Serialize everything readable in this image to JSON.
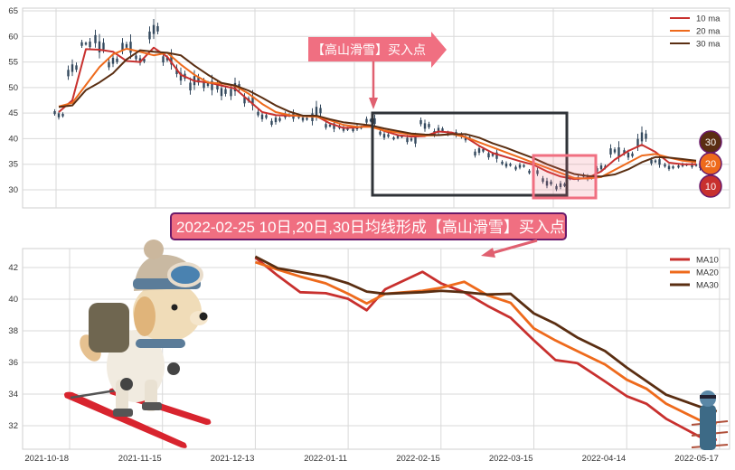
{
  "colors": {
    "ma10": "#c8302e",
    "ma20": "#ee6a1c",
    "ma30": "#5a2e12",
    "candle": "#34495e",
    "annotation": "#f06f81",
    "annotation_border": "#6a1a6a",
    "box": "#2f3338",
    "grid": "#d9d9d9"
  },
  "annotations": {
    "top_arrow_label": "【高山滑雪】买入点",
    "bottom_banner": "2022-02-25 10日,20日,30日均线形成【高山滑雪】买入点",
    "badges": [
      "30",
      "20",
      "10"
    ]
  },
  "illustrations": [
    "skiing-dog",
    "small-skier"
  ],
  "chart_data": [
    {
      "type": "line",
      "subtype": "candlestick-with-moving-averages",
      "title": "",
      "xlabel": "",
      "ylabel": "",
      "ylim": [
        26.5,
        65.5
      ],
      "yticks": [
        "30",
        "35",
        "40",
        "45",
        "50",
        "55",
        "60",
        "65"
      ],
      "grid": true,
      "legend": {
        "placement": "top-right",
        "entries": [
          "10 ma",
          "20 ma",
          "30 ma"
        ]
      },
      "candles": {
        "low": [
          43.5,
          51,
          57,
          55,
          53,
          55,
          54,
          58,
          53,
          50,
          48,
          48,
          47,
          47,
          45,
          43,
          42,
          43,
          43,
          42,
          41,
          41,
          41,
          42,
          39.5,
          39.5,
          38,
          41,
          40,
          40,
          39,
          36,
          35,
          34,
          33.5,
          32.5,
          30,
          29.5,
          31.5,
          31.5,
          33,
          35,
          35.5,
          37,
          34,
          33.5,
          34,
          33.5
        ],
        "high": [
          46,
          56,
          60,
          62,
          57,
          61,
          57,
          64,
          58,
          55,
          54,
          53,
          52,
          52.5,
          50,
          46,
          45,
          46,
          45,
          48,
          44,
          43,
          43,
          45,
          42,
          41,
          41.5,
          44.5,
          43,
          42,
          41.5,
          39,
          38.5,
          36,
          35.5,
          34.5,
          33,
          32,
          33,
          33.5,
          35.5,
          40,
          38.5,
          43,
          37,
          35.5,
          35.5,
          36
        ]
      },
      "series": [
        {
          "name": "10 ma",
          "values": [
            45.2,
            47.5,
            57.5,
            57.4,
            57.0,
            55.2,
            55.0,
            57.8,
            56.0,
            52.5,
            51.3,
            51.0,
            50.4,
            49.8,
            47.5,
            45.2,
            44.6,
            44.5,
            44.5,
            44.4,
            43.0,
            42.1,
            42.2,
            42.6,
            41.5,
            40.7,
            40.4,
            40.5,
            41.4,
            41.2,
            40.3,
            38.6,
            37.2,
            36.4,
            35.6,
            34.9,
            33.6,
            32.6,
            32.1,
            32.3,
            33.6,
            35.9,
            37.6,
            38.8,
            37.4,
            35.3,
            35.0,
            35.0
          ]
        },
        {
          "name": "20 ma",
          "values": [
            46.3,
            47.0,
            50.5,
            54.0,
            56.5,
            57.6,
            57.0,
            56.3,
            56.8,
            54.5,
            52.5,
            51.0,
            50.8,
            50.3,
            48.8,
            46.8,
            45.2,
            44.6,
            44.4,
            44.3,
            43.6,
            42.7,
            42.3,
            42.3,
            41.6,
            41.2,
            40.8,
            40.6,
            40.7,
            40.9,
            40.3,
            39.3,
            38.3,
            37.3,
            36.3,
            35.3,
            34.3,
            33.3,
            32.3,
            32.2,
            32.5,
            33.9,
            35.3,
            36.7,
            37.0,
            36.3,
            35.7,
            35.4
          ]
        },
        {
          "name": "30 ma",
          "values": [
            46.2,
            46.5,
            49.5,
            51.0,
            52.8,
            55.5,
            57.3,
            57.0,
            56.8,
            56.3,
            54.3,
            52.5,
            50.9,
            50.4,
            49.4,
            48.0,
            46.5,
            45.3,
            44.5,
            44.5,
            43.8,
            43.2,
            42.9,
            42.6,
            42.0,
            41.5,
            41.0,
            40.8,
            40.7,
            40.9,
            40.9,
            40.2,
            39.1,
            38.2,
            37.2,
            36.2,
            35.0,
            34.0,
            33.1,
            32.7,
            32.6,
            33.0,
            34.0,
            35.4,
            36.4,
            36.3,
            36.0,
            35.7
          ]
        }
      ]
    },
    {
      "type": "line",
      "title": "",
      "xlabel": "",
      "ylabel": "",
      "ylim": [
        30.5,
        43.3
      ],
      "yticks": [
        "32",
        "34",
        "36",
        "38",
        "40",
        "42"
      ],
      "xticks": [
        "2021-10-18",
        "2021-11-15",
        "2021-12-13",
        "2022-01-11",
        "2022-02-15",
        "2022-03-15",
        "2022-04-14",
        "2022-05-17"
      ],
      "grid": true,
      "legend": {
        "placement": "top-right",
        "entries": [
          "MA10",
          "MA20",
          "MA30"
        ]
      },
      "x": [
        "2021-12-13",
        "2021-12-20",
        "2021-12-27",
        "2022-01-04",
        "2022-01-11",
        "2022-01-18",
        "2022-01-25",
        "2022-02-08",
        "2022-02-15",
        "2022-02-22",
        "2022-03-01",
        "2022-03-08",
        "2022-03-15",
        "2022-03-22",
        "2022-03-29",
        "2022-04-07",
        "2022-04-14",
        "2022-04-21",
        "2022-04-28",
        "2022-05-10",
        "2022-05-16"
      ],
      "series": [
        {
          "name": "MA10",
          "values": [
            42.63,
            41.49,
            40.44,
            40.38,
            40.02,
            39.3,
            40.63,
            41.73,
            41.0,
            40.44,
            39.58,
            38.82,
            37.4,
            36.15,
            35.96,
            34.8,
            33.87,
            33.39,
            32.44,
            31.3,
            31.1
          ]
        },
        {
          "name": "MA20",
          "values": [
            42.34,
            41.87,
            41.43,
            41.0,
            40.34,
            39.73,
            40.34,
            40.53,
            40.72,
            41.1,
            40.25,
            39.77,
            38.15,
            37.39,
            36.72,
            35.87,
            34.91,
            34.34,
            33.39,
            32.34,
            32.15
          ]
        },
        {
          "name": "MA30",
          "values": [
            42.69,
            41.96,
            41.71,
            41.43,
            41.0,
            40.48,
            40.34,
            40.44,
            40.53,
            40.44,
            40.3,
            40.34,
            39.1,
            38.44,
            37.58,
            36.72,
            35.68,
            34.82,
            33.96,
            33.2,
            32.91
          ]
        }
      ]
    }
  ]
}
